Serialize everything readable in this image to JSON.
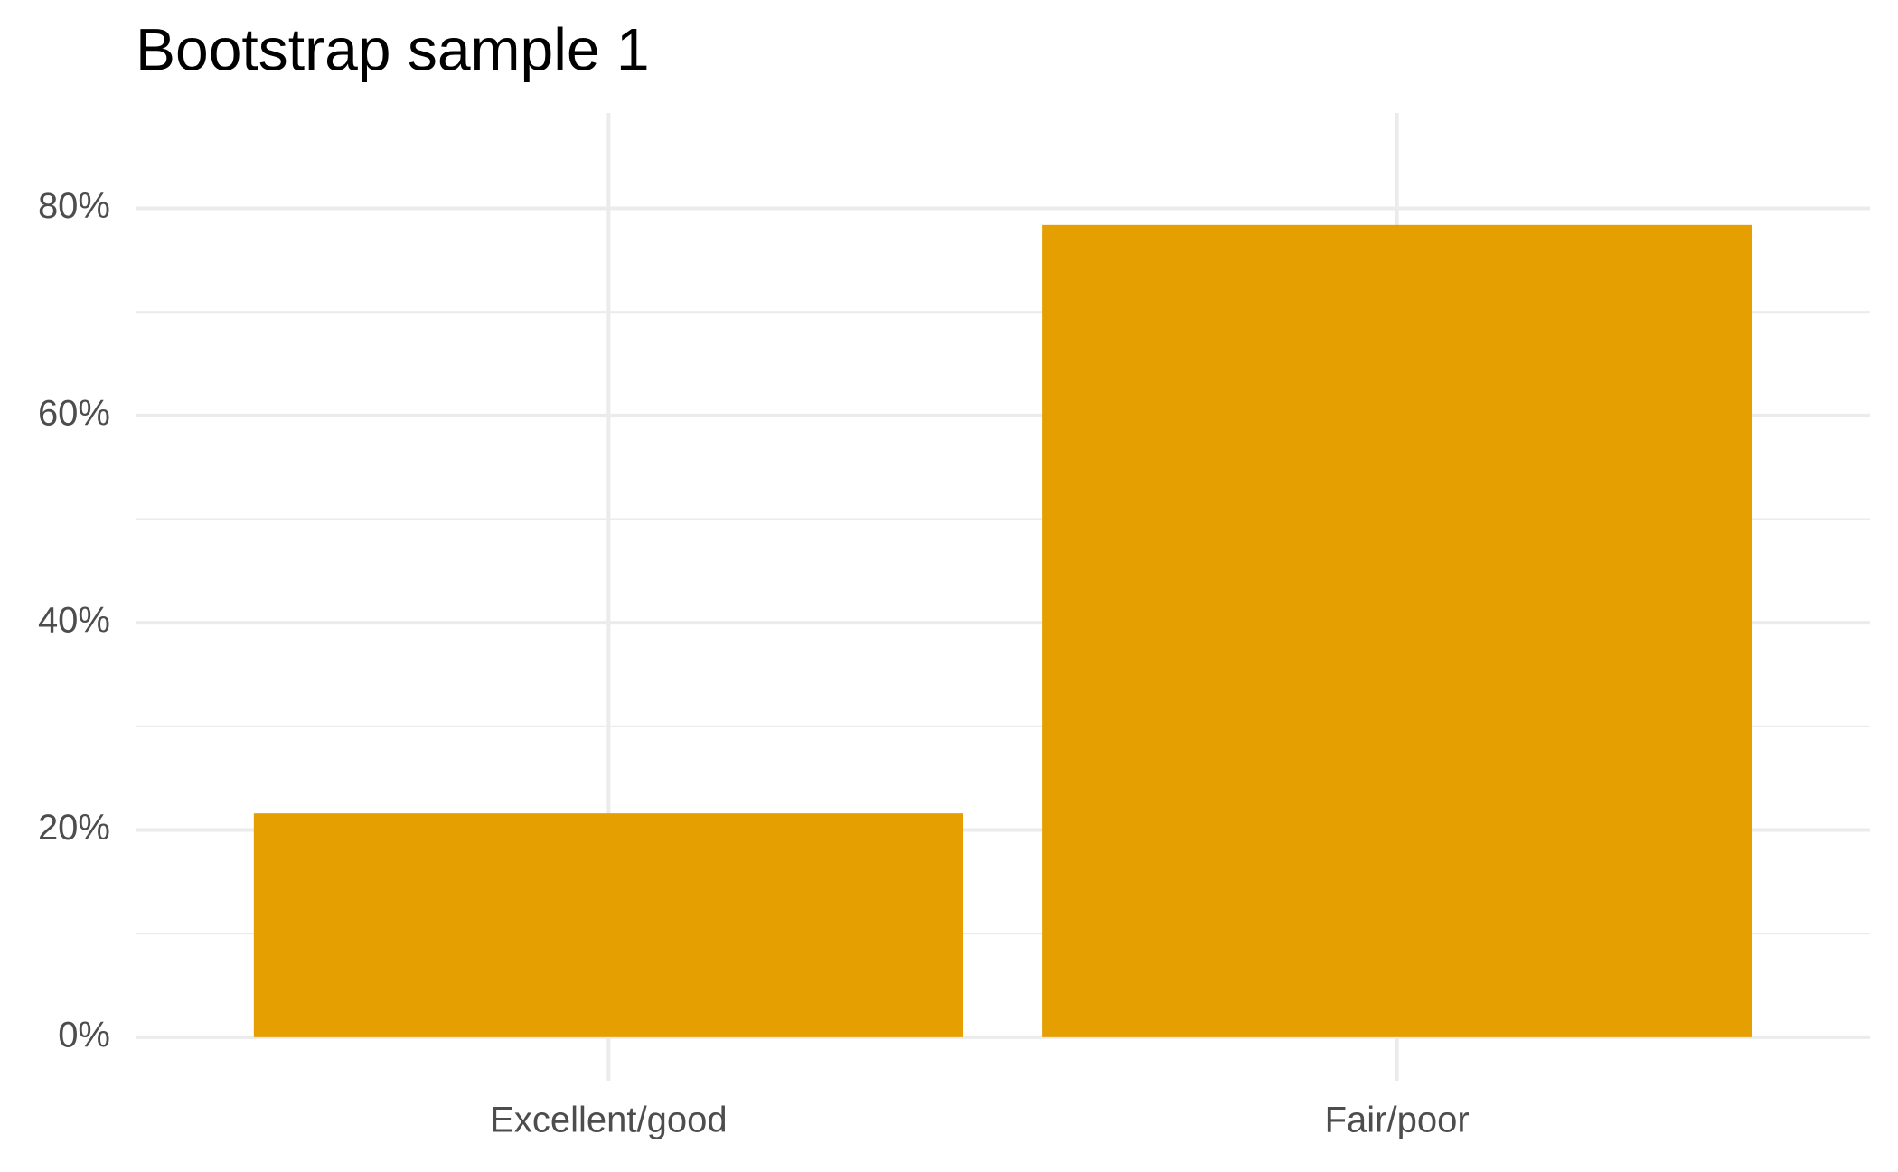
{
  "chart_data": {
    "type": "bar",
    "title": "Bootstrap sample 1",
    "categories": [
      "Excellent/good",
      "Fair/poor"
    ],
    "values": [
      21.6,
      78.4
    ],
    "color": "#e69f00",
    "ylim": [
      -4.2,
      89.2
    ],
    "yticks": [
      {
        "value": 0,
        "label": "0%"
      },
      {
        "value": 20,
        "label": "20%"
      },
      {
        "value": 40,
        "label": "40%"
      },
      {
        "value": 60,
        "label": "60%"
      },
      {
        "value": 80,
        "label": "80%"
      }
    ],
    "minor_yticks": [
      10,
      30,
      50,
      70
    ],
    "grid": true
  }
}
